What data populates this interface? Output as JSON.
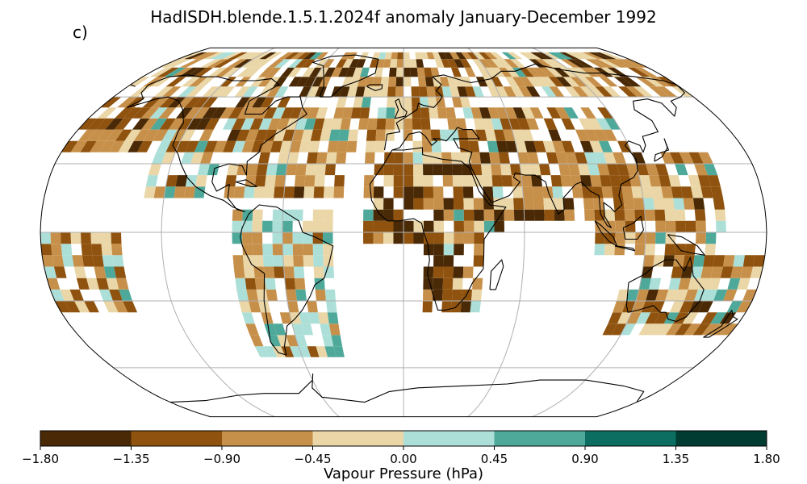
{
  "header": {
    "title": "HadISDH.blende.1.5.1.2024f anomaly January-December 1992",
    "panel_label": "c)"
  },
  "colorbar": {
    "label": "Vapour Pressure (hPa)",
    "ticks": [
      "−1.80",
      "−1.35",
      "−0.90",
      "−0.45",
      "0.00",
      "0.45",
      "0.90",
      "1.35",
      "1.80"
    ],
    "bounds": [
      -1.8,
      -1.35,
      -0.9,
      -0.45,
      0,
      0.45,
      0.9,
      1.35,
      1.8
    ],
    "colors": [
      "#4a2a06",
      "#8f530f",
      "#c7904a",
      "#ead6a6",
      "#acdfd8",
      "#4ea99a",
      "#0b6e61",
      "#003c31"
    ]
  },
  "map": {
    "projection": "robinson",
    "land_color": "#ffffff",
    "coast_color": "#000000",
    "grid_color": "#b0b0b0"
  }
}
